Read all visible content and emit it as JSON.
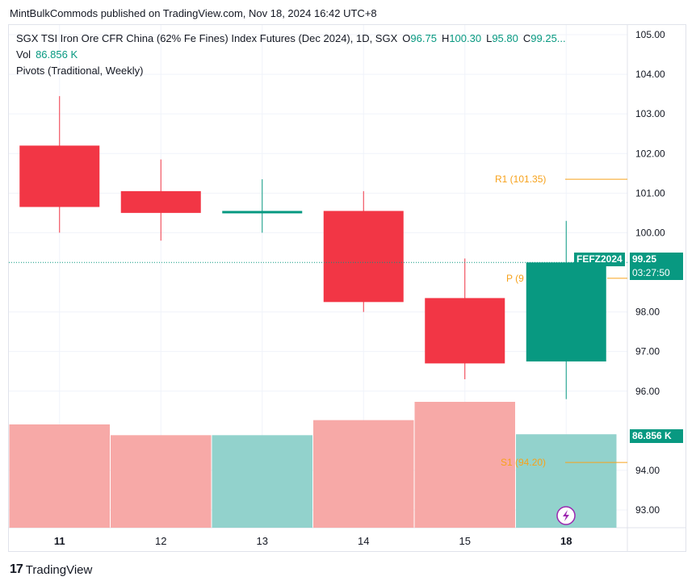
{
  "header": {
    "publisher_line": "MintBulkCommods published on TradingView.com, Nov 18, 2024 16:42 UTC+8"
  },
  "legend": {
    "title": "SGX TSI Iron Ore CFR China (62% Fe Fines) Index Futures (Dec 2024), 1D, SGX",
    "open_label": "O",
    "open_value": "96.75",
    "high_label": "H",
    "high_value": "100.30",
    "low_label": "L",
    "low_value": "95.80",
    "close_label": "C",
    "close_value": "99.25...",
    "vol_label": "Vol",
    "vol_value": "86.856 K",
    "pivots_label": "Pivots (Traditional, Weekly)"
  },
  "badges": {
    "symbol": "FEFZ2024",
    "last_price": "99.25",
    "countdown": "03:27:50",
    "volume": "86.856 K"
  },
  "footer": {
    "brand": "TradingView"
  },
  "colors": {
    "up": "#089981",
    "down": "#f23645",
    "vol_up": "#92d2cc",
    "vol_down": "#f7a9a7",
    "pivot": "#f7a21b",
    "grid": "#f0f3fa"
  },
  "chart_data": {
    "type": "candlestick",
    "categories": [
      "11",
      "12",
      "13",
      "14",
      "15",
      "18"
    ],
    "bold_categories": [
      "11",
      "18"
    ],
    "series": [
      {
        "name": "",
        "open": 102.2,
        "high": 103.45,
        "low": 100.0,
        "close": 100.65
      },
      {
        "name": "",
        "open": 101.05,
        "high": 101.85,
        "low": 99.8,
        "close": 100.5
      },
      {
        "name": "",
        "open": 100.5,
        "high": 101.35,
        "low": 100.0,
        "close": 100.55
      },
      {
        "name": "",
        "open": 100.55,
        "high": 101.05,
        "low": 98.0,
        "close": 98.25
      },
      {
        "name": "",
        "open": 98.35,
        "high": 99.35,
        "low": 96.3,
        "close": 96.7
      },
      {
        "name": "",
        "open": 96.75,
        "high": 100.3,
        "low": 95.8,
        "close": 99.25
      }
    ],
    "volume": [
      96000,
      86000,
      86000,
      100000,
      117000,
      86856
    ],
    "volume_direction": [
      "down",
      "down",
      "up",
      "down",
      "down",
      "up"
    ],
    "pivots": [
      {
        "label": "R1 (101.35)",
        "value": 101.35
      },
      {
        "label": "P (9",
        "value": 98.85
      },
      {
        "label": "S1 (94.20)",
        "value": 94.2
      }
    ],
    "y_ticks": [
      "105.00",
      "104.00",
      "103.00",
      "102.00",
      "101.00",
      "100.00",
      "98.00",
      "97.00",
      "96.00",
      "94.00",
      "93.00"
    ],
    "ylim": [
      92.5,
      105.3
    ],
    "last_price": 99.25
  }
}
